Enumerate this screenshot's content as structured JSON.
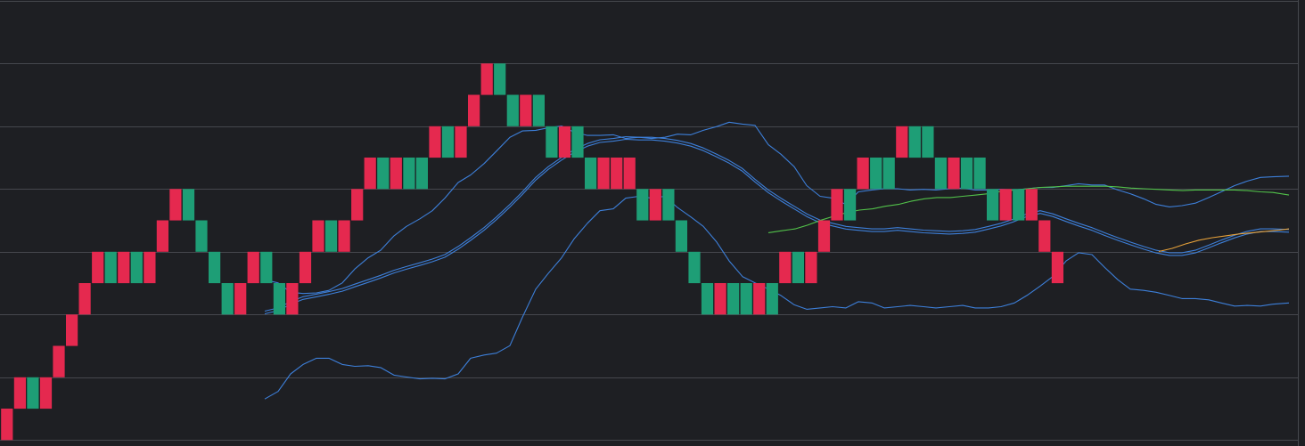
{
  "chart_data": {
    "type": "renko",
    "grid": true,
    "colors": {
      "background": "#1e1f23",
      "grid": "#45474d",
      "up_brick": "#1e9e76",
      "down_brick": "#e5294f",
      "bollinger": "#3d7fd9",
      "green_line": "#52c24a",
      "orange_line": "#e6a13a"
    },
    "y_levels": [
      0,
      1,
      2,
      3,
      4,
      5,
      6,
      7
    ],
    "bricks": [
      {
        "dir": "down",
        "lvl": 1
      },
      {
        "dir": "down",
        "lvl": 0
      },
      {
        "dir": "up",
        "lvl": 0
      },
      {
        "dir": "down",
        "lvl": 0
      },
      {
        "dir": "down",
        "lvl": -1
      },
      {
        "dir": "down",
        "lvl": -2
      },
      {
        "dir": "down",
        "lvl": -3
      },
      {
        "dir": "down",
        "lvl": -4
      },
      {
        "dir": "up",
        "lvl": -4
      },
      {
        "dir": "down",
        "lvl": -4
      },
      {
        "dir": "up",
        "lvl": -4
      },
      {
        "dir": "down",
        "lvl": -4
      },
      {
        "dir": "down",
        "lvl": -5
      },
      {
        "dir": "down",
        "lvl": -6
      },
      {
        "dir": "up",
        "lvl": -6
      },
      {
        "dir": "up",
        "lvl": -5
      },
      {
        "dir": "up",
        "lvl": -4
      },
      {
        "dir": "up",
        "lvl": -3
      },
      {
        "dir": "down",
        "lvl": -3
      },
      {
        "dir": "down",
        "lvl": -4
      },
      {
        "dir": "up",
        "lvl": -4
      },
      {
        "dir": "up",
        "lvl": -3
      },
      {
        "dir": "down",
        "lvl": -3
      },
      {
        "dir": "down",
        "lvl": -4
      },
      {
        "dir": "down",
        "lvl": -5
      },
      {
        "dir": "up",
        "lvl": -5
      },
      {
        "dir": "down",
        "lvl": -5
      },
      {
        "dir": "down",
        "lvl": -6
      },
      {
        "dir": "down",
        "lvl": -7
      },
      {
        "dir": "up",
        "lvl": -7
      },
      {
        "dir": "down",
        "lvl": -7
      },
      {
        "dir": "up",
        "lvl": -7
      },
      {
        "dir": "up",
        "lvl": -7
      },
      {
        "dir": "down",
        "lvl": -8
      },
      {
        "dir": "up",
        "lvl": -8
      },
      {
        "dir": "down",
        "lvl": -8
      },
      {
        "dir": "down",
        "lvl": -9
      },
      {
        "dir": "down",
        "lvl": -10
      },
      {
        "dir": "up",
        "lvl": -10
      },
      {
        "dir": "up",
        "lvl": -9
      },
      {
        "dir": "down",
        "lvl": -9
      },
      {
        "dir": "up",
        "lvl": -9
      },
      {
        "dir": "up",
        "lvl": -8
      },
      {
        "dir": "down",
        "lvl": -8
      },
      {
        "dir": "up",
        "lvl": -8
      },
      {
        "dir": "up",
        "lvl": -7
      },
      {
        "dir": "down",
        "lvl": -7
      },
      {
        "dir": "down",
        "lvl": -7
      },
      {
        "dir": "down",
        "lvl": -7
      },
      {
        "dir": "up",
        "lvl": -6
      },
      {
        "dir": "down",
        "lvl": -6
      },
      {
        "dir": "up",
        "lvl": -6
      },
      {
        "dir": "up",
        "lvl": -5
      },
      {
        "dir": "up",
        "lvl": -4
      },
      {
        "dir": "up",
        "lvl": -3
      },
      {
        "dir": "down",
        "lvl": -3
      },
      {
        "dir": "up",
        "lvl": -3
      },
      {
        "dir": "up",
        "lvl": -3
      },
      {
        "dir": "down",
        "lvl": -3
      },
      {
        "dir": "up",
        "lvl": -3
      },
      {
        "dir": "down",
        "lvl": -4
      },
      {
        "dir": "up",
        "lvl": -4
      },
      {
        "dir": "down",
        "lvl": -4
      },
      {
        "dir": "down",
        "lvl": -5
      },
      {
        "dir": "down",
        "lvl": -6
      },
      {
        "dir": "up",
        "lvl": -6
      },
      {
        "dir": "down",
        "lvl": -7
      },
      {
        "dir": "up",
        "lvl": -7
      },
      {
        "dir": "up",
        "lvl": -7
      },
      {
        "dir": "down",
        "lvl": -8
      },
      {
        "dir": "up",
        "lvl": -8
      },
      {
        "dir": "up",
        "lvl": -8
      },
      {
        "dir": "up",
        "lvl": -7
      },
      {
        "dir": "down",
        "lvl": -7
      },
      {
        "dir": "up",
        "lvl": -7
      },
      {
        "dir": "up",
        "lvl": -7
      },
      {
        "dir": "up",
        "lvl": -6
      },
      {
        "dir": "down",
        "lvl": -6
      },
      {
        "dir": "up",
        "lvl": -6
      },
      {
        "dir": "down",
        "lvl": -6
      },
      {
        "dir": "down",
        "lvl": -5
      },
      {
        "dir": "down",
        "lvl": -4
      }
    ],
    "series": [
      {
        "x": [
          297,
          312,
          326,
          340,
          355,
          369,
          384,
          398,
          413,
          427,
          442,
          456,
          471,
          485,
          499,
          514,
          528,
          543,
          557,
          572,
          586,
          601,
          615,
          630,
          644,
          659,
          673,
          688,
          702,
          717,
          731,
          746,
          760,
          775,
          789,
          804,
          818,
          833,
          847,
          862,
          876,
          891,
          905,
          920,
          934,
          949,
          963,
          978,
          992,
          1007,
          1021,
          1036,
          1050,
          1065,
          1080,
          1094,
          1109,
          1123,
          1138,
          1152,
          1167,
          1181,
          1196,
          1210,
          1225,
          1239,
          1254,
          1268,
          1283,
          1297,
          1312,
          1326,
          1341,
          1356,
          1370,
          1385,
          1399,
          1414,
          1428,
          1446
        ],
        "y": [
          2.55,
          2.5,
          2.35,
          2.33,
          2.34,
          2.38,
          2.5,
          2.72,
          2.9,
          3.02,
          3.25,
          3.4,
          3.52,
          3.65,
          3.85,
          4.1,
          4.22,
          4.4,
          4.6,
          4.82,
          4.92,
          4.93,
          4.97,
          5.0,
          4.9,
          4.85,
          4.85,
          4.86,
          4.8,
          4.82,
          4.8,
          4.82,
          4.87,
          4.86,
          4.93,
          4.99,
          5.06,
          5.03,
          5.01,
          4.7,
          4.55,
          4.35,
          4.05,
          3.88,
          3.85,
          3.75,
          3.95,
          3.98,
          4.0,
          4.0,
          3.98,
          3.99,
          3.98,
          4.0,
          4.01,
          3.98,
          3.98,
          3.99,
          3.98,
          4.0,
          4.02,
          4.02,
          4.05,
          4.08,
          4.06,
          4.06,
          3.98,
          3.92,
          3.84,
          3.75,
          3.71,
          3.73,
          3.77,
          3.86,
          3.95,
          4.05,
          4.12,
          4.18,
          4.19,
          4.2
        ],
        "values_label": "bollinger-upper"
      },
      {
        "x": [
          297,
          312,
          326,
          340,
          355,
          369,
          384,
          398,
          413,
          427,
          442,
          456,
          471,
          485,
          499,
          514,
          528,
          543,
          557,
          572,
          586,
          601,
          615,
          630,
          644,
          659,
          673,
          688,
          702,
          717,
          731,
          746,
          760,
          775,
          789,
          804,
          818,
          833,
          847,
          862,
          876,
          891,
          905,
          920,
          934,
          949,
          963,
          978,
          992,
          1007,
          1021,
          1036,
          1050,
          1065,
          1080,
          1094,
          1109,
          1123,
          1138,
          1152,
          1167,
          1181,
          1196,
          1210,
          1225,
          1239,
          1254,
          1268,
          1283,
          1297,
          1312,
          1326,
          1341,
          1356,
          1370,
          1385,
          1399,
          1414,
          1428,
          1446
        ],
        "y": [
          2.05,
          2.1,
          2.2,
          2.28,
          2.32,
          2.36,
          2.41,
          2.48,
          2.55,
          2.62,
          2.7,
          2.76,
          2.82,
          2.88,
          2.95,
          3.08,
          3.22,
          3.38,
          3.55,
          3.75,
          3.95,
          4.18,
          4.35,
          4.5,
          4.62,
          4.72,
          4.78,
          4.8,
          4.83,
          4.82,
          4.82,
          4.8,
          4.77,
          4.72,
          4.65,
          4.55,
          4.45,
          4.32,
          4.15,
          3.98,
          3.85,
          3.72,
          3.6,
          3.5,
          3.45,
          3.4,
          3.38,
          3.36,
          3.36,
          3.38,
          3.36,
          3.34,
          3.33,
          3.32,
          3.33,
          3.35,
          3.4,
          3.45,
          3.52,
          3.6,
          3.65,
          3.6,
          3.52,
          3.45,
          3.38,
          3.3,
          3.22,
          3.15,
          3.08,
          3.02,
          2.98,
          2.98,
          3.02,
          3.1,
          3.18,
          3.26,
          3.32,
          3.36,
          3.36,
          3.35
        ],
        "values_label": "bollinger-middle"
      },
      {
        "x": [
          297,
          312,
          326,
          340,
          355,
          369,
          384,
          398,
          413,
          427,
          442,
          456,
          471,
          485,
          499,
          514,
          528,
          543,
          557,
          572,
          586,
          601,
          615,
          630,
          644,
          659,
          673,
          688,
          702,
          717,
          731,
          746,
          760,
          775,
          789,
          804,
          818,
          833,
          847,
          862,
          876,
          891,
          905,
          920,
          934,
          949,
          963,
          978,
          992,
          1007,
          1021,
          1036,
          1050,
          1065,
          1080,
          1094,
          1109,
          1123,
          1138,
          1152,
          1167,
          1181,
          1196,
          1210,
          1225,
          1239,
          1254,
          1268,
          1283,
          1297,
          1312,
          1326,
          1341,
          1356,
          1370,
          1385,
          1399,
          1414,
          1428,
          1446
        ],
        "y": [
          0.65,
          0.77,
          1.05,
          1.2,
          1.3,
          1.3,
          1.2,
          1.17,
          1.18,
          1.15,
          1.03,
          1.0,
          0.97,
          0.98,
          0.97,
          1.05,
          1.3,
          1.35,
          1.38,
          1.5,
          1.95,
          2.4,
          2.65,
          2.9,
          3.2,
          3.45,
          3.65,
          3.68,
          3.85,
          3.88,
          3.85,
          3.88,
          3.7,
          3.55,
          3.4,
          3.15,
          2.85,
          2.6,
          2.5,
          2.4,
          2.3,
          2.15,
          2.08,
          2.1,
          2.12,
          2.1,
          2.2,
          2.18,
          2.1,
          2.12,
          2.14,
          2.12,
          2.1,
          2.12,
          2.14,
          2.1,
          2.1,
          2.12,
          2.18,
          2.3,
          2.45,
          2.6,
          2.85,
          2.98,
          2.95,
          2.75,
          2.55,
          2.4,
          2.38,
          2.35,
          2.3,
          2.25,
          2.25,
          2.23,
          2.18,
          2.13,
          2.14,
          2.13,
          2.16,
          2.18
        ],
        "values_label": "bollinger-lower"
      },
      {
        "x": [
          862,
          877,
          892,
          906,
          921,
          935,
          950,
          964,
          979,
          993,
          1008,
          1022,
          1037,
          1051,
          1066,
          1080,
          1095,
          1109,
          1124,
          1138,
          1153,
          1167,
          1182,
          1196,
          1211,
          1225,
          1240,
          1254,
          1269,
          1283,
          1298,
          1312,
          1327,
          1341,
          1356,
          1370,
          1385,
          1399,
          1414,
          1428,
          1446
        ],
        "y": [
          3.3,
          3.33,
          3.36,
          3.42,
          3.5,
          3.56,
          3.62,
          3.66,
          3.68,
          3.72,
          3.75,
          3.8,
          3.84,
          3.86,
          3.86,
          3.88,
          3.9,
          3.92,
          3.96,
          3.98,
          4.0,
          4.02,
          4.03,
          4.04,
          4.04,
          4.04,
          4.04,
          4.03,
          4.01,
          4.0,
          3.99,
          3.98,
          3.97,
          3.98,
          3.98,
          3.98,
          3.98,
          3.97,
          3.95,
          3.94,
          3.9
        ],
        "values_label": "green-line"
      },
      {
        "x": [
          1300,
          1315,
          1330,
          1345,
          1360,
          1375,
          1390,
          1405,
          1420,
          1435,
          1446
        ],
        "y": [
          3.0,
          3.05,
          3.12,
          3.18,
          3.22,
          3.25,
          3.28,
          3.3,
          3.32,
          3.34,
          3.36
        ],
        "values_label": "orange-line"
      }
    ]
  }
}
